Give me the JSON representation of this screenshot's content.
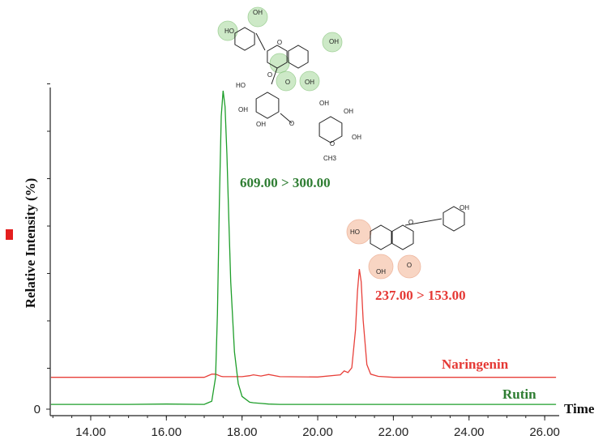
{
  "chart_data": {
    "type": "line",
    "y_label": "Relative Intensity (%)",
    "x_label": "Time",
    "xlim": [
      12.93,
      26.34
    ],
    "xticks": [
      {
        "value": 14,
        "label": "14.00"
      },
      {
        "value": 16,
        "label": "16.00"
      },
      {
        "value": 18,
        "label": "18.00"
      },
      {
        "value": 20,
        "label": "20.00"
      },
      {
        "value": 22,
        "label": "22.00"
      },
      {
        "value": 24,
        "label": "24.00"
      },
      {
        "value": 26,
        "label": "26.00"
      }
    ],
    "ylim": [
      0,
      101
    ],
    "yticks": [
      0
    ],
    "x": [
      12.95,
      14,
      15,
      16,
      17,
      17.2,
      17.3,
      17.35,
      17.4,
      17.45,
      17.5,
      17.55,
      17.6,
      17.65,
      17.7,
      17.8,
      17.9,
      18.0,
      18.2,
      18.3,
      18.5,
      18.7,
      19,
      20,
      20.6,
      20.7,
      20.8,
      20.9,
      21.0,
      21.05,
      21.1,
      21.15,
      21.2,
      21.3,
      21.4,
      21.6,
      22,
      23,
      24,
      25,
      26.3
    ],
    "series": [
      {
        "name": "Rutin",
        "color": "#1e9e2a",
        "label_color": "#2e7d32",
        "values": [
          1.5,
          1.5,
          1.5,
          1.6,
          1.5,
          2.5,
          10,
          30,
          65,
          92,
          100,
          95,
          80,
          60,
          40,
          18,
          8,
          4,
          2.2,
          2,
          1.8,
          1.6,
          1.5,
          1.5,
          1.5,
          1.5,
          1.5,
          1.5,
          1.5,
          1.5,
          1.5,
          1.5,
          1.5,
          1.5,
          1.5,
          1.5,
          1.5,
          1.5,
          1.5,
          1.5,
          1.5
        ]
      },
      {
        "name": "Naringenin",
        "color": "#e8403a",
        "label_color": "#e53935",
        "values": [
          10,
          10,
          10,
          10,
          10,
          11,
          11,
          10.8,
          10.5,
          10.3,
          10.2,
          10.2,
          10.2,
          10.2,
          10.2,
          10.2,
          10.2,
          10.2,
          10.5,
          10.8,
          10.4,
          10.9,
          10.2,
          10.1,
          10.8,
          12,
          11.5,
          13,
          25,
          37,
          44,
          40,
          28,
          14,
          11,
          10.3,
          10,
          10,
          10,
          10,
          10
        ]
      }
    ],
    "annotations": [
      {
        "text": "609.00 > 300.00",
        "series": 0
      },
      {
        "text": "237.00 > 153.00",
        "series": 1
      }
    ],
    "structures": [
      {
        "labels": [
          "OH",
          "HO",
          "OH",
          "O",
          "O",
          "OH",
          "O",
          "HO",
          "OH",
          "OH",
          "O",
          "OH",
          "OH",
          "O",
          "CH3",
          "OH"
        ]
      },
      {
        "labels": [
          "HO",
          "O",
          "OH",
          "OH",
          "O"
        ]
      }
    ]
  }
}
